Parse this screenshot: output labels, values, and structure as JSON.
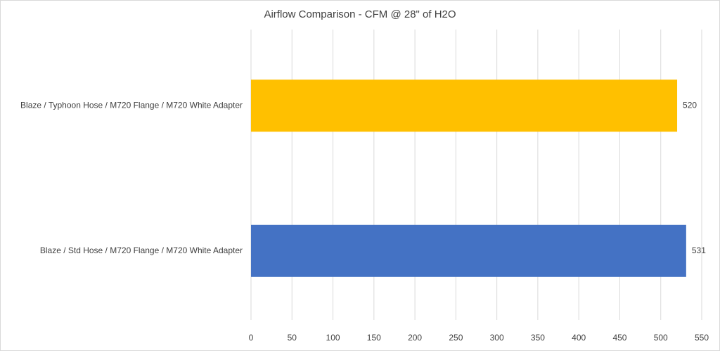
{
  "chart_data": {
    "type": "hbar",
    "title": "Airflow Comparison - CFM @ 28\" of H2O",
    "categories": [
      "Blaze / Typhoon Hose / M720 Flange / M720 White Adapter",
      "Blaze / Std Hose / M720 Flange / M720 White Adapter"
    ],
    "values": [
      520,
      531
    ],
    "colors": [
      "#ffc000",
      "#4472c4"
    ],
    "xlim": [
      0,
      550
    ],
    "xticks": [
      0,
      50,
      100,
      150,
      200,
      250,
      300,
      350,
      400,
      450,
      500,
      550
    ],
    "grid": true
  }
}
